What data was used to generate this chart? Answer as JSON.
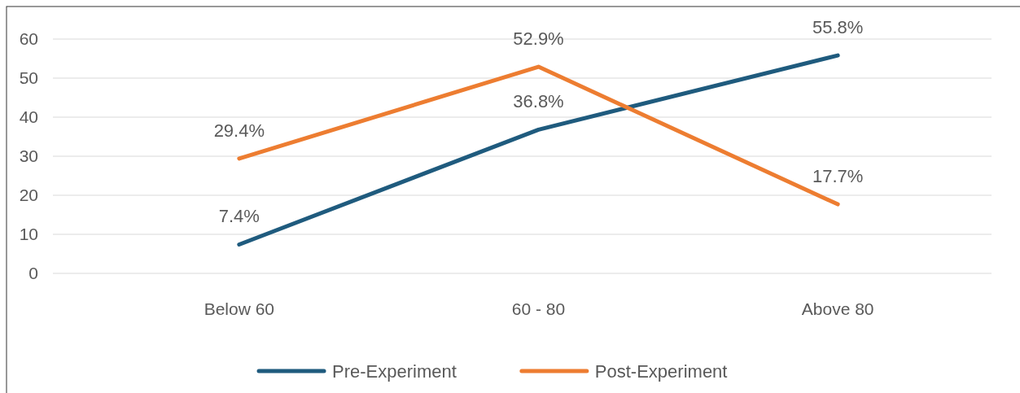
{
  "chart_data": {
    "type": "line",
    "categories": [
      "Below 60",
      "60 - 80",
      "Above 80"
    ],
    "series": [
      {
        "name": "Pre-Experiment",
        "color": "#1f5b7e",
        "values": [
          7.4,
          36.8,
          55.8
        ],
        "value_labels": [
          "7.4%",
          "36.8%",
          "55.8%"
        ]
      },
      {
        "name": "Post-Experiment",
        "color": "#ed7d31",
        "values": [
          29.4,
          52.9,
          17.7
        ],
        "value_labels": [
          "29.4%",
          "52.9%",
          "17.7%"
        ]
      }
    ],
    "ylim": [
      0,
      60
    ],
    "yticks": [
      0,
      10,
      20,
      30,
      40,
      50,
      60
    ],
    "grid": "y",
    "legend": "bottom",
    "marker": "none",
    "line_style": "solid"
  }
}
